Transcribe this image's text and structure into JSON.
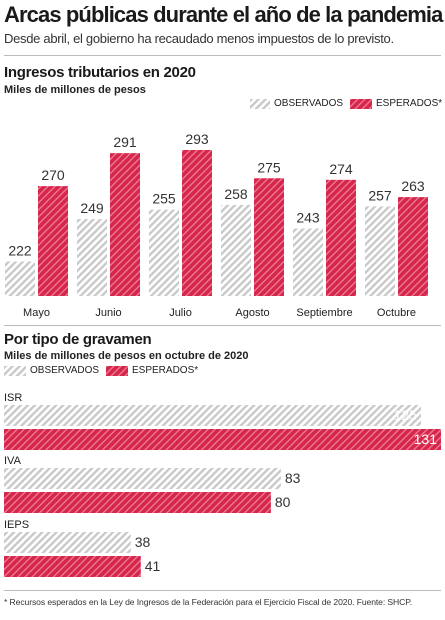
{
  "header": {
    "title": "Arcas públicas durante el año de la pandemia",
    "subtitle": "Desde abril, el gobierno ha recaudado menos impuestos de lo previsto."
  },
  "colors": {
    "observed_stripe": "#c9c9c9",
    "expected": "#d6264b"
  },
  "chart_data": [
    {
      "type": "bar",
      "title": "Ingresos tributarios en 2020",
      "subtitle": "Miles de millones de pesos",
      "legend": [
        "OBSERVADOS",
        "ESPERADOS*"
      ],
      "legend_position": "top-right",
      "categories": [
        "Mayo",
        "Junio",
        "Julio",
        "Agosto",
        "Septiembre",
        "Octubre"
      ],
      "series": [
        {
          "name": "OBSERVADOS",
          "values": [
            222,
            249,
            255,
            258,
            243,
            257
          ]
        },
        {
          "name": "ESPERADOS*",
          "values": [
            270,
            291,
            293,
            275,
            274,
            263
          ]
        }
      ],
      "ylim": [
        0,
        300
      ],
      "grid": false
    },
    {
      "type": "bar",
      "orientation": "horizontal",
      "title": "Por tipo de gravamen",
      "subtitle": "Miles de millones de pesos en octubre de 2020",
      "legend": [
        "OBSERVADOS",
        "ESPERADOS*"
      ],
      "legend_position": "top-left",
      "categories": [
        "ISR",
        "IVA",
        "IEPS"
      ],
      "series": [
        {
          "name": "OBSERVADOS",
          "values": [
            125,
            83,
            38
          ]
        },
        {
          "name": "ESPERADOS*",
          "values": [
            131,
            80,
            41
          ]
        }
      ],
      "xlim": [
        0,
        131
      ],
      "grid": false
    }
  ],
  "footnote": "* Recursos esperados en la Ley de Ingresos de la Federación para el Ejercicio Fiscal de 2020. Fuente: SHCP."
}
